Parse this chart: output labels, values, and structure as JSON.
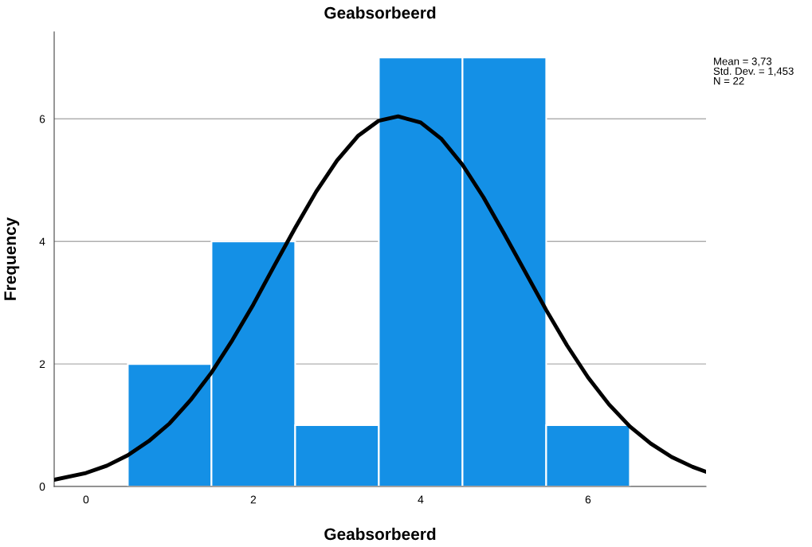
{
  "chart_data": {
    "type": "histogram",
    "title": "Geabsorbeerd",
    "xlabel": "Geabsorbeerd",
    "ylabel": "Frequency",
    "bins": [
      0.5,
      1.5,
      2.5,
      3.5,
      4.5,
      5.5,
      6.5
    ],
    "values": [
      2,
      4,
      1,
      7,
      7,
      1
    ],
    "color": "#1490e6",
    "series": [
      {
        "type": "line",
        "color": "#000000",
        "x": [
          -0.38,
          0,
          0.25,
          0.5,
          0.75,
          1.0,
          1.25,
          1.5,
          1.75,
          2.0,
          2.25,
          2.5,
          2.75,
          3.0,
          3.25,
          3.5,
          3.73,
          4.0,
          4.25,
          4.5,
          4.75,
          5.0,
          5.25,
          5.5,
          5.75,
          6.0,
          6.25,
          6.5,
          6.75,
          7.0,
          7.25,
          7.41
        ],
        "values": [
          0.11,
          0.22,
          0.34,
          0.51,
          0.74,
          1.03,
          1.41,
          1.86,
          2.39,
          2.97,
          3.6,
          4.22,
          4.81,
          5.32,
          5.72,
          5.97,
          6.04,
          5.94,
          5.67,
          5.25,
          4.72,
          4.12,
          3.5,
          2.88,
          2.3,
          1.78,
          1.34,
          0.98,
          0.7,
          0.48,
          0.32,
          0.24
        ]
      }
    ],
    "xlim": [
      -0.38,
      7.41
    ],
    "xticks": [
      0,
      2,
      4,
      6
    ],
    "ylim": [
      0,
      7.42
    ],
    "yticks": [
      0,
      2,
      4,
      6
    ],
    "grid": "y",
    "annotations": [
      "Mean = 3,73\nStd. Dev. = 1,453\nN = 22"
    ]
  }
}
